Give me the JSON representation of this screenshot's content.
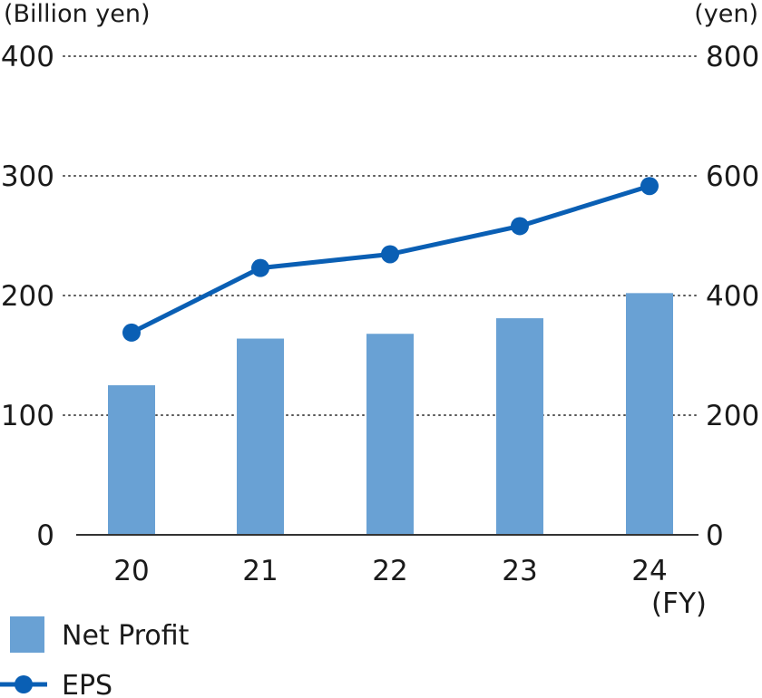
{
  "chart_data": {
    "type": "bar",
    "categories": [
      "20",
      "21",
      "22",
      "23",
      "24"
    ],
    "x_unit": "(FY)",
    "left_axis": {
      "unit": "(Billion yen)",
      "ticks": [
        "0",
        "100",
        "200",
        "300",
        "400"
      ],
      "range": [
        0,
        400
      ]
    },
    "right_axis": {
      "unit": "(yen)",
      "ticks": [
        "0",
        "200",
        "400",
        "600",
        "800"
      ],
      "range": [
        0,
        800
      ]
    },
    "series": [
      {
        "name": "Net Profit",
        "type": "bar",
        "axis": "left",
        "values": [
          125,
          164,
          168,
          181,
          202
        ]
      },
      {
        "name": "EPS",
        "type": "line",
        "axis": "right",
        "values": [
          338,
          446,
          469,
          516,
          583
        ]
      }
    ],
    "grid": true,
    "legend_position": "bottom-left"
  },
  "colors": {
    "bar": "#69a1d4",
    "line": "#0a5fb4",
    "grid": "#555555",
    "axis": "#333333",
    "text": "#1a1a1a"
  }
}
